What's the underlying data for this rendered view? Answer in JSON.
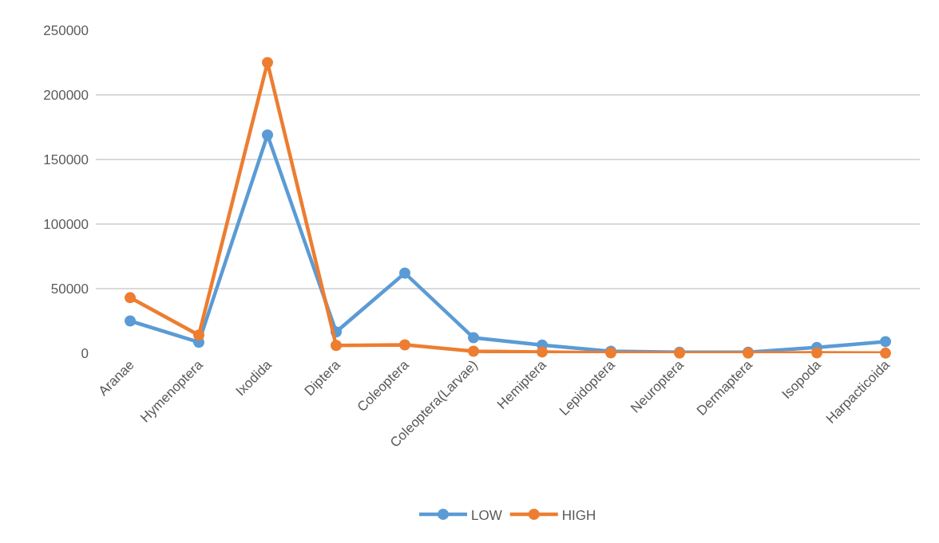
{
  "chart_data": {
    "type": "line",
    "categories": [
      "Aranae",
      "Hymenoptera",
      "Ixodida",
      "Diptera",
      "Coleoptera",
      "Coleoptera(Larvae)",
      "Hemiptera",
      "Lepidoptera",
      "Neuroptera",
      "Dermaptera",
      "Isopoda",
      "Harpacticoida"
    ],
    "series": [
      {
        "name": "LOW",
        "color": "#5b9bd5",
        "values": [
          25000,
          8500,
          169000,
          16500,
          62000,
          12000,
          6300,
          1500,
          800,
          800,
          4500,
          9000
        ]
      },
      {
        "name": "HIGH",
        "color": "#ed7d31",
        "values": [
          43000,
          14000,
          225000,
          6000,
          6500,
          1500,
          1000,
          300,
          200,
          200,
          300,
          100
        ]
      }
    ],
    "ylim": [
      0,
      250000
    ],
    "yticks": [
      0,
      50000,
      100000,
      150000,
      200000,
      250000
    ],
    "grid": "y",
    "legend": "bottom",
    "marker": "circle",
    "line_style": "solid"
  }
}
